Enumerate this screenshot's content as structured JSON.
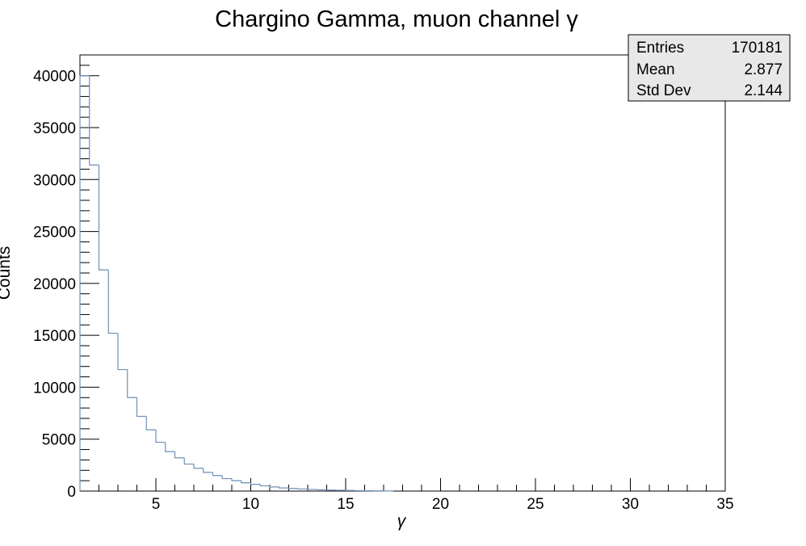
{
  "chart_data": {
    "type": "histogram",
    "title": "Chargino Gamma, muon channel γ",
    "xlabel": "γ",
    "ylabel": "Counts",
    "xlim": [
      1,
      35
    ],
    "ylim": [
      0,
      42000
    ],
    "bin_width": 0.5,
    "x_ticks": [
      5,
      10,
      15,
      20,
      25,
      30,
      35
    ],
    "y_ticks": [
      0,
      5000,
      10000,
      15000,
      20000,
      25000,
      30000,
      35000,
      40000
    ],
    "line_color": "#6f8fb5",
    "grid": false,
    "legend": "none",
    "series": [
      {
        "bin_low_edges": [
          1.0,
          1.5,
          2.0,
          2.5,
          3.0,
          3.5,
          4.0,
          4.5,
          5.0,
          5.5,
          6.0,
          6.5,
          7.0,
          7.5,
          8.0,
          8.5,
          9.0,
          9.5,
          10.0,
          10.5,
          11.0,
          11.5,
          12.0,
          12.5,
          13.0,
          13.5,
          14.0,
          14.5,
          15.0,
          15.5,
          16.0,
          16.5,
          17.0
        ],
        "values": [
          40000,
          31400,
          21300,
          15200,
          11700,
          9000,
          7200,
          5900,
          4700,
          3800,
          3200,
          2600,
          2200,
          1800,
          1500,
          1200,
          1000,
          800,
          650,
          500,
          400,
          300,
          250,
          200,
          160,
          120,
          100,
          80,
          60,
          40,
          30,
          20,
          10
        ]
      }
    ]
  },
  "stats_box": {
    "rows": [
      {
        "label": "Entries",
        "value": "170181"
      },
      {
        "label": "Mean",
        "value": "2.877"
      },
      {
        "label": "Std Dev",
        "value": "2.144"
      }
    ]
  }
}
